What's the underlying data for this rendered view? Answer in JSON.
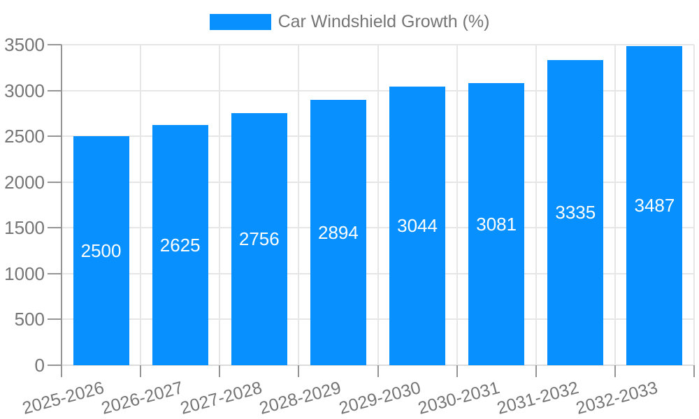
{
  "chart_data": {
    "type": "bar",
    "title": "Car Windshield Growth (%)",
    "legend": {
      "position": "top-center",
      "entries": [
        "Car Windshield Growth (%)"
      ]
    },
    "categories": [
      "2025-2026",
      "2026-2027",
      "2027-2028",
      "2028-2029",
      "2029-2030",
      "2030-2031",
      "2031-2032",
      "2032-2033"
    ],
    "values": [
      2500,
      2625,
      2756,
      2894,
      3044,
      3081,
      3335,
      3487
    ],
    "value_labels_shown": true,
    "xlabel": "",
    "ylabel": "",
    "ylim": [
      0,
      3500
    ],
    "yticks": [
      0,
      500,
      1000,
      1500,
      2000,
      2500,
      3000,
      3500
    ],
    "x_label_rotation_deg": -15,
    "grid": true,
    "colors": {
      "bar": "#0890FF",
      "value_label": "#FFFFFF",
      "axis_text": "#757575",
      "grid_line": "#E6E6E6",
      "axis_line": "#949494",
      "baseline": "#DCDCDC",
      "background": "#FFFFFF"
    }
  }
}
